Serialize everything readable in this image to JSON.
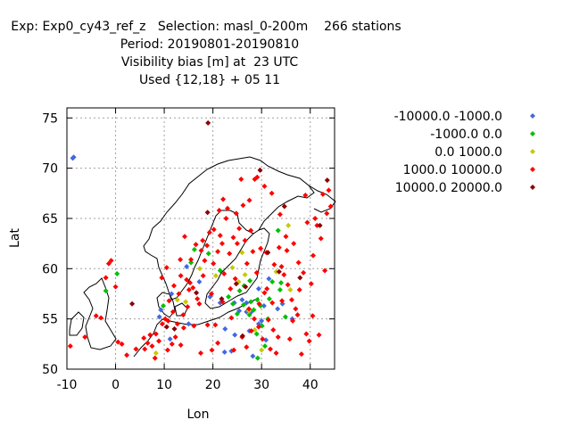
{
  "header": {
    "line1": "Exp: Exp0_cy43_ref_z   Selection: masl_0-200m    266 stations",
    "line2": "Period: 20190801-20190810",
    "line3": "Visibility bias [m] at  23 UTC",
    "line4": "Used {12,18} + 05 11"
  },
  "chart_data": {
    "type": "scatter",
    "title": "Visibility bias [m] at  23 UTC",
    "xlabel": "Lon",
    "ylabel": "Lat",
    "xlim": [
      -10,
      45
    ],
    "ylim": [
      50,
      76
    ],
    "xticks": [
      -10,
      0,
      10,
      20,
      30,
      40
    ],
    "yticks": [
      50,
      55,
      60,
      65,
      70,
      75
    ],
    "grid": true,
    "legend_position": "top-right, outside plot",
    "series": [
      {
        "name": "-10000.0 -1000.0",
        "color": "#4169e1",
        "points": [
          [
            -8.8,
            71.0
          ],
          [
            -8.6,
            71.1
          ],
          [
            9,
            55.2
          ],
          [
            11.5,
            57.5
          ],
          [
            17.2,
            58.7
          ],
          [
            19.4,
            57.2
          ],
          [
            21.5,
            56.6
          ],
          [
            22.4,
            51.7
          ],
          [
            23.8,
            51.8
          ],
          [
            24.4,
            56.6
          ],
          [
            25.4,
            55.8
          ],
          [
            26.0,
            56.9
          ],
          [
            26.9,
            55.7
          ],
          [
            27.9,
            55.7
          ],
          [
            29.4,
            58.0
          ],
          [
            29.4,
            54.5
          ],
          [
            30.0,
            54.8
          ],
          [
            30.5,
            56.3
          ],
          [
            31.5,
            59.0
          ],
          [
            33.3,
            56.0
          ],
          [
            34.3,
            56.5
          ],
          [
            36.3,
            55.0
          ],
          [
            11.2,
            53.0
          ],
          [
            15.0,
            54.5
          ],
          [
            22.5,
            54.0
          ],
          [
            24.5,
            53.4
          ],
          [
            9.3,
            55.9
          ],
          [
            14.6,
            60.2
          ],
          [
            27.5,
            53.8
          ],
          [
            28.2,
            51.3
          ],
          [
            26.9,
            56.6
          ],
          [
            30.9,
            52.9
          ]
        ]
      },
      {
        "name": "-1000.0 0.0",
        "color": "#00c000",
        "points": [
          [
            0.3,
            59.5
          ],
          [
            -2.0,
            57.8
          ],
          [
            9.8,
            56.3
          ],
          [
            15.5,
            60.6
          ],
          [
            16.2,
            61.9
          ],
          [
            19.1,
            61.5
          ],
          [
            21.5,
            59.8
          ],
          [
            25.0,
            55.5
          ],
          [
            25.5,
            57.8
          ],
          [
            26.4,
            58.3
          ],
          [
            27.6,
            58.8
          ],
          [
            27.8,
            56.7
          ],
          [
            28.4,
            55.9
          ],
          [
            29.1,
            56.9
          ],
          [
            29.8,
            56.3
          ],
          [
            30.1,
            54.3
          ],
          [
            31.3,
            55.0
          ],
          [
            31.6,
            57.0
          ],
          [
            32.2,
            58.7
          ],
          [
            33.8,
            57.9
          ],
          [
            34.0,
            58.6
          ],
          [
            34.9,
            55.2
          ],
          [
            30.7,
            52.3
          ],
          [
            33.4,
            63.8
          ],
          [
            27.5,
            55.4
          ],
          [
            24.1,
            56.5
          ],
          [
            23.2,
            57.2
          ],
          [
            26.3,
            56.4
          ],
          [
            29.0,
            53.5
          ],
          [
            29.2,
            51.1
          ]
        ]
      },
      {
        "name": "0.0 1000.0",
        "color": "#c8c800",
        "points": [
          [
            8.3,
            51.6
          ],
          [
            14.4,
            56.7
          ],
          [
            17.3,
            60.0
          ],
          [
            20.6,
            59.3
          ],
          [
            25.3,
            58.7
          ],
          [
            26.6,
            59.4
          ],
          [
            27.4,
            55.8
          ],
          [
            28.6,
            53.9
          ],
          [
            30.0,
            51.9
          ],
          [
            33.0,
            59.7
          ],
          [
            35.9,
            57.9
          ],
          [
            35.5,
            64.3
          ],
          [
            24.0,
            60.1
          ],
          [
            26.0,
            61.6
          ],
          [
            12.7,
            56.9
          ]
        ]
      },
      {
        "name": "1000.0 10000.0",
        "color": "#ff0000",
        "points": [
          [
            -9.3,
            52.3
          ],
          [
            -6.3,
            53.2
          ],
          [
            -4.0,
            55.3
          ],
          [
            -3.0,
            55.1
          ],
          [
            -2.0,
            59.1
          ],
          [
            -1.4,
            60.5
          ],
          [
            -0.9,
            60.8
          ],
          [
            0.0,
            58.2
          ],
          [
            0.5,
            52.7
          ],
          [
            1.3,
            52.5
          ],
          [
            2.3,
            51.4
          ],
          [
            4.2,
            52.0
          ],
          [
            5.8,
            53.1
          ],
          [
            6.0,
            52.0
          ],
          [
            6.6,
            52.6
          ],
          [
            7.1,
            53.4
          ],
          [
            7.5,
            52.3
          ],
          [
            8.1,
            51.1
          ],
          [
            8.3,
            53.5
          ],
          [
            8.9,
            52.8
          ],
          [
            9.6,
            54.5
          ],
          [
            10.2,
            55.0
          ],
          [
            10.7,
            51.9
          ],
          [
            10.8,
            54.8
          ],
          [
            11.6,
            52.5
          ],
          [
            11.8,
            55.7
          ],
          [
            12.3,
            53.2
          ],
          [
            12.7,
            54.5
          ],
          [
            13.0,
            57.5
          ],
          [
            13.4,
            52.4
          ],
          [
            13.9,
            55.4
          ],
          [
            14.0,
            54.1
          ],
          [
            14.6,
            58.9
          ],
          [
            14.8,
            56.2
          ],
          [
            15.1,
            57.9
          ],
          [
            15.5,
            60.9
          ],
          [
            15.9,
            58.1
          ],
          [
            16.5,
            62.4
          ],
          [
            16.8,
            57.0
          ],
          [
            17.2,
            56.5
          ],
          [
            17.6,
            61.8
          ],
          [
            18.0,
            59.3
          ],
          [
            18.3,
            60.8
          ],
          [
            18.8,
            62.3
          ],
          [
            19.3,
            63.6
          ],
          [
            19.7,
            57.5
          ],
          [
            20.1,
            60.5
          ],
          [
            20.5,
            54.4
          ],
          [
            21.0,
            61.7
          ],
          [
            21.5,
            63.3
          ],
          [
            21.9,
            62.5
          ],
          [
            22.3,
            59.5
          ],
          [
            22.7,
            65.0
          ],
          [
            23.0,
            66.0
          ],
          [
            23.4,
            61.5
          ],
          [
            23.8,
            55.1
          ],
          [
            24.2,
            63.1
          ],
          [
            24.6,
            59.0
          ],
          [
            25.0,
            62.5
          ],
          [
            25.4,
            64.0
          ],
          [
            25.8,
            68.9
          ],
          [
            26.2,
            66.3
          ],
          [
            26.6,
            62.8
          ],
          [
            27.0,
            60.5
          ],
          [
            27.4,
            56.0
          ],
          [
            27.8,
            63.8
          ],
          [
            28.2,
            61.7
          ],
          [
            28.6,
            68.9
          ],
          [
            29.0,
            59.6
          ],
          [
            29.4,
            54.2
          ],
          [
            29.8,
            62.0
          ],
          [
            30.2,
            53.0
          ],
          [
            30.6,
            57.6
          ],
          [
            31.0,
            61.6
          ],
          [
            31.4,
            54.9
          ],
          [
            31.8,
            52.0
          ],
          [
            32.2,
            56.6
          ],
          [
            32.6,
            60.4
          ],
          [
            33.0,
            51.6
          ],
          [
            33.4,
            53.2
          ],
          [
            33.8,
            65.4
          ],
          [
            34.2,
            56.8
          ],
          [
            34.6,
            59.4
          ],
          [
            35.0,
            63.2
          ],
          [
            35.4,
            58.4
          ],
          [
            35.8,
            53.0
          ],
          [
            36.2,
            56.9
          ],
          [
            36.6,
            62.5
          ],
          [
            37.0,
            56.0
          ],
          [
            37.4,
            55.4
          ],
          [
            37.8,
            57.9
          ],
          [
            38.2,
            51.5
          ],
          [
            38.6,
            59.6
          ],
          [
            39.0,
            67.3
          ],
          [
            39.4,
            64.6
          ],
          [
            39.8,
            52.8
          ],
          [
            40.2,
            58.5
          ],
          [
            40.6,
            61.3
          ],
          [
            41.0,
            65.0
          ],
          [
            41.4,
            64.3
          ],
          [
            41.8,
            53.4
          ],
          [
            42.2,
            63.0
          ],
          [
            42.6,
            67.4
          ],
          [
            43.0,
            59.8
          ],
          [
            43.4,
            65.5
          ],
          [
            43.8,
            67.8
          ],
          [
            44.2,
            66.2
          ],
          [
            9.5,
            59.1
          ],
          [
            10.5,
            60.1
          ],
          [
            11.0,
            56.8
          ],
          [
            12.0,
            58.3
          ],
          [
            13.4,
            59.3
          ],
          [
            16.1,
            54.3
          ],
          [
            17.5,
            51.6
          ],
          [
            18.9,
            54.4
          ],
          [
            19.8,
            51.9
          ],
          [
            21.0,
            52.6
          ],
          [
            22.0,
            56.7
          ],
          [
            23.6,
            58.0
          ],
          [
            24.3,
            51.9
          ],
          [
            26.0,
            53.2
          ],
          [
            26.9,
            52.2
          ],
          [
            27.9,
            53.8
          ],
          [
            28.5,
            55.0
          ],
          [
            29.5,
            56.5
          ],
          [
            31.1,
            58.0
          ],
          [
            32.4,
            53.9
          ],
          [
            33.6,
            62.1
          ],
          [
            34.1,
            60.2
          ],
          [
            35.2,
            61.8
          ],
          [
            36.4,
            54.8
          ],
          [
            37.6,
            60.6
          ],
          [
            39.2,
            53.5
          ],
          [
            40.5,
            55.3
          ],
          [
            13.3,
            60.9
          ],
          [
            14.2,
            63.2
          ],
          [
            15.3,
            58.6
          ],
          [
            17.9,
            62.8
          ],
          [
            20.2,
            63.9
          ],
          [
            21.3,
            65.8
          ],
          [
            22.1,
            66.9
          ],
          [
            24.8,
            65.5
          ],
          [
            27.5,
            66.8
          ],
          [
            29.1,
            69.1
          ],
          [
            30.6,
            68.2
          ],
          [
            32.1,
            67.5
          ]
        ]
      },
      {
        "name": "10000.0 20000.0",
        "color": "#8b0000",
        "points": [
          [
            3.4,
            56.5
          ],
          [
            10.5,
            54.2
          ],
          [
            12.1,
            54.0
          ],
          [
            16.6,
            57.6
          ],
          [
            18.9,
            65.6
          ],
          [
            19.0,
            74.5
          ],
          [
            21.8,
            57.0
          ],
          [
            24.8,
            58.5
          ],
          [
            26.7,
            58.2
          ],
          [
            31.3,
            61.6
          ],
          [
            33.6,
            59.7
          ],
          [
            34.7,
            66.2
          ],
          [
            37.9,
            59.1
          ],
          [
            42.0,
            64.3
          ],
          [
            43.5,
            68.8
          ],
          [
            26.1,
            53.3
          ],
          [
            29.7,
            69.8
          ]
        ]
      }
    ]
  }
}
